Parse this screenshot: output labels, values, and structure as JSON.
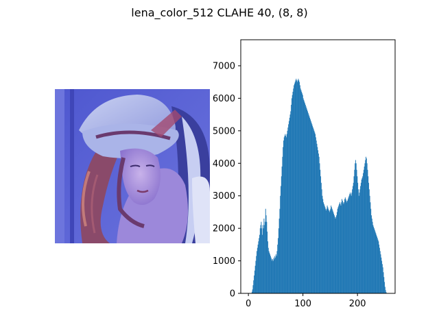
{
  "figure": {
    "title": "lena_color_512 CLAHE 40, (8, 8)"
  },
  "image_panel": {
    "description_icon": "photo-image",
    "colors": {
      "sky": "#5a63d6",
      "hat": "#a9b4e6",
      "hair": "#8a4a6a",
      "skin": "#b9a0e0",
      "shadow": "#3a2f8a",
      "light": "#c7cef2"
    }
  },
  "chart_data": {
    "type": "bar",
    "title": "",
    "xlabel": "",
    "ylabel": "",
    "xlim": [
      -14,
      269
    ],
    "ylim": [
      0,
      7800
    ],
    "xticks": [
      0,
      100,
      200
    ],
    "yticks": [
      0,
      1000,
      2000,
      3000,
      4000,
      5000,
      6000,
      7000
    ],
    "bar_color": "#1f77b4",
    "x_start": 0,
    "values": [
      0,
      0,
      0,
      0,
      0,
      10,
      50,
      120,
      250,
      400,
      550,
      700,
      850,
      1000,
      1150,
      1300,
      1400,
      1500,
      1600,
      1700,
      1800,
      2000,
      2100,
      2200,
      2000,
      1800,
      2100,
      2000,
      2300,
      2100,
      2200,
      2600,
      2400,
      2200,
      1900,
      1600,
      1400,
      1300,
      1250,
      1200,
      1150,
      1100,
      1050,
      1000,
      1050,
      1000,
      1100,
      1050,
      1150,
      1100,
      1200,
      1150,
      1300,
      1500,
      1700,
      2000,
      2300,
      2600,
      3000,
      3300,
      3600,
      3900,
      4200,
      4500,
      4700,
      4800,
      4850,
      4900,
      4850,
      4800,
      4900,
      5000,
      5100,
      5200,
      5300,
      5400,
      5500,
      5600,
      5800,
      6000,
      6100,
      6200,
      6300,
      6400,
      6450,
      6500,
      6550,
      6600,
      6550,
      6500,
      6550,
      6600,
      6550,
      6500,
      6400,
      6300,
      6250,
      6200,
      6150,
      6100,
      6000,
      5950,
      5900,
      5850,
      5800,
      5750,
      5700,
      5650,
      5600,
      5550,
      5500,
      5450,
      5400,
      5350,
      5300,
      5250,
      5200,
      5150,
      5100,
      5050,
      5000,
      4950,
      4900,
      4800,
      4700,
      4600,
      4500,
      4400,
      4300,
      4200,
      4000,
      3800,
      3600,
      3400,
      3200,
      3000,
      2900,
      2800,
      2750,
      2700,
      2650,
      2600,
      2550,
      2600,
      2700,
      2650,
      2600,
      2550,
      2500,
      2550,
      2600,
      2700,
      2650,
      2600,
      2550,
      2500,
      2450,
      2400,
      2350,
      2300,
      2350,
      2400,
      2500,
      2600,
      2650,
      2700,
      2750,
      2800,
      2750,
      2700,
      2800,
      2900,
      2850,
      2800,
      2750,
      2800,
      2900,
      2950,
      2900,
      2850,
      2800,
      2850,
      2900,
      2950,
      3000,
      3050,
      3100,
      3050,
      3000,
      3100,
      3200,
      3300,
      3400,
      3600,
      3800,
      4000,
      4100,
      4000,
      3800,
      3600,
      3400,
      3200,
      3000,
      3100,
      3200,
      3300,
      3400,
      3500,
      3550,
      3600,
      3700,
      3800,
      3900,
      4000,
      4100,
      4200,
      4150,
      4000,
      3800,
      3600,
      3400,
      3200,
      3000,
      2800,
      2600,
      2400,
      2300,
      2200,
      2100,
      2050,
      2000,
      1950,
      1900,
      1850,
      1800,
      1750,
      1700,
      1650,
      1600,
      1500,
      1400,
      1300,
      1200,
      1100,
      1000,
      900,
      800,
      650,
      500,
      350,
      200,
      100,
      40,
      10,
      0,
      0,
      0,
      0,
      0,
      0
    ]
  }
}
